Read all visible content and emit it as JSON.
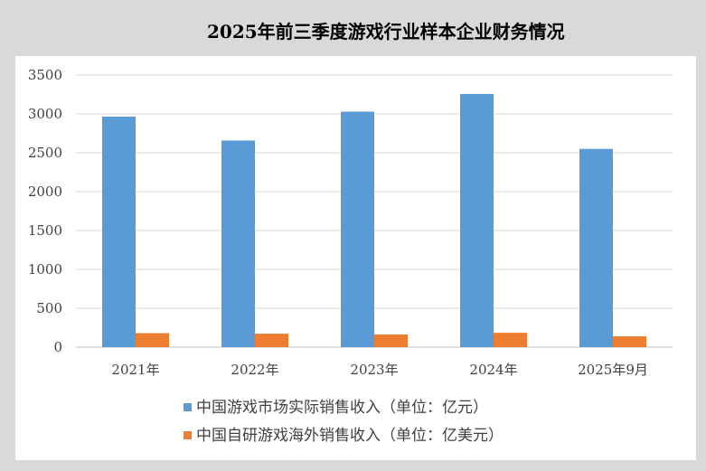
{
  "chart_data": {
    "type": "bar",
    "title": "2025年前三季度游戏行业样本企业财务情况",
    "categories": [
      "2021年",
      "2022年",
      "2023年",
      "2024年",
      "2025年9月"
    ],
    "series": [
      {
        "name": "中国游戏市场实际销售收入（单位：亿元）",
        "color": "#5b9bd5",
        "values": [
          2965,
          2658,
          3029,
          3257,
          2550
        ]
      },
      {
        "name": "中国自研游戏海外销售收入（单位：亿美元）",
        "color": "#ed7d31",
        "values": [
          180,
          173,
          163,
          185,
          140
        ]
      }
    ],
    "ylim": [
      0,
      3500
    ],
    "yticks": [
      0,
      500,
      1000,
      1500,
      2000,
      2500,
      3000,
      3500
    ],
    "grid": true,
    "legend_position": "bottom"
  }
}
